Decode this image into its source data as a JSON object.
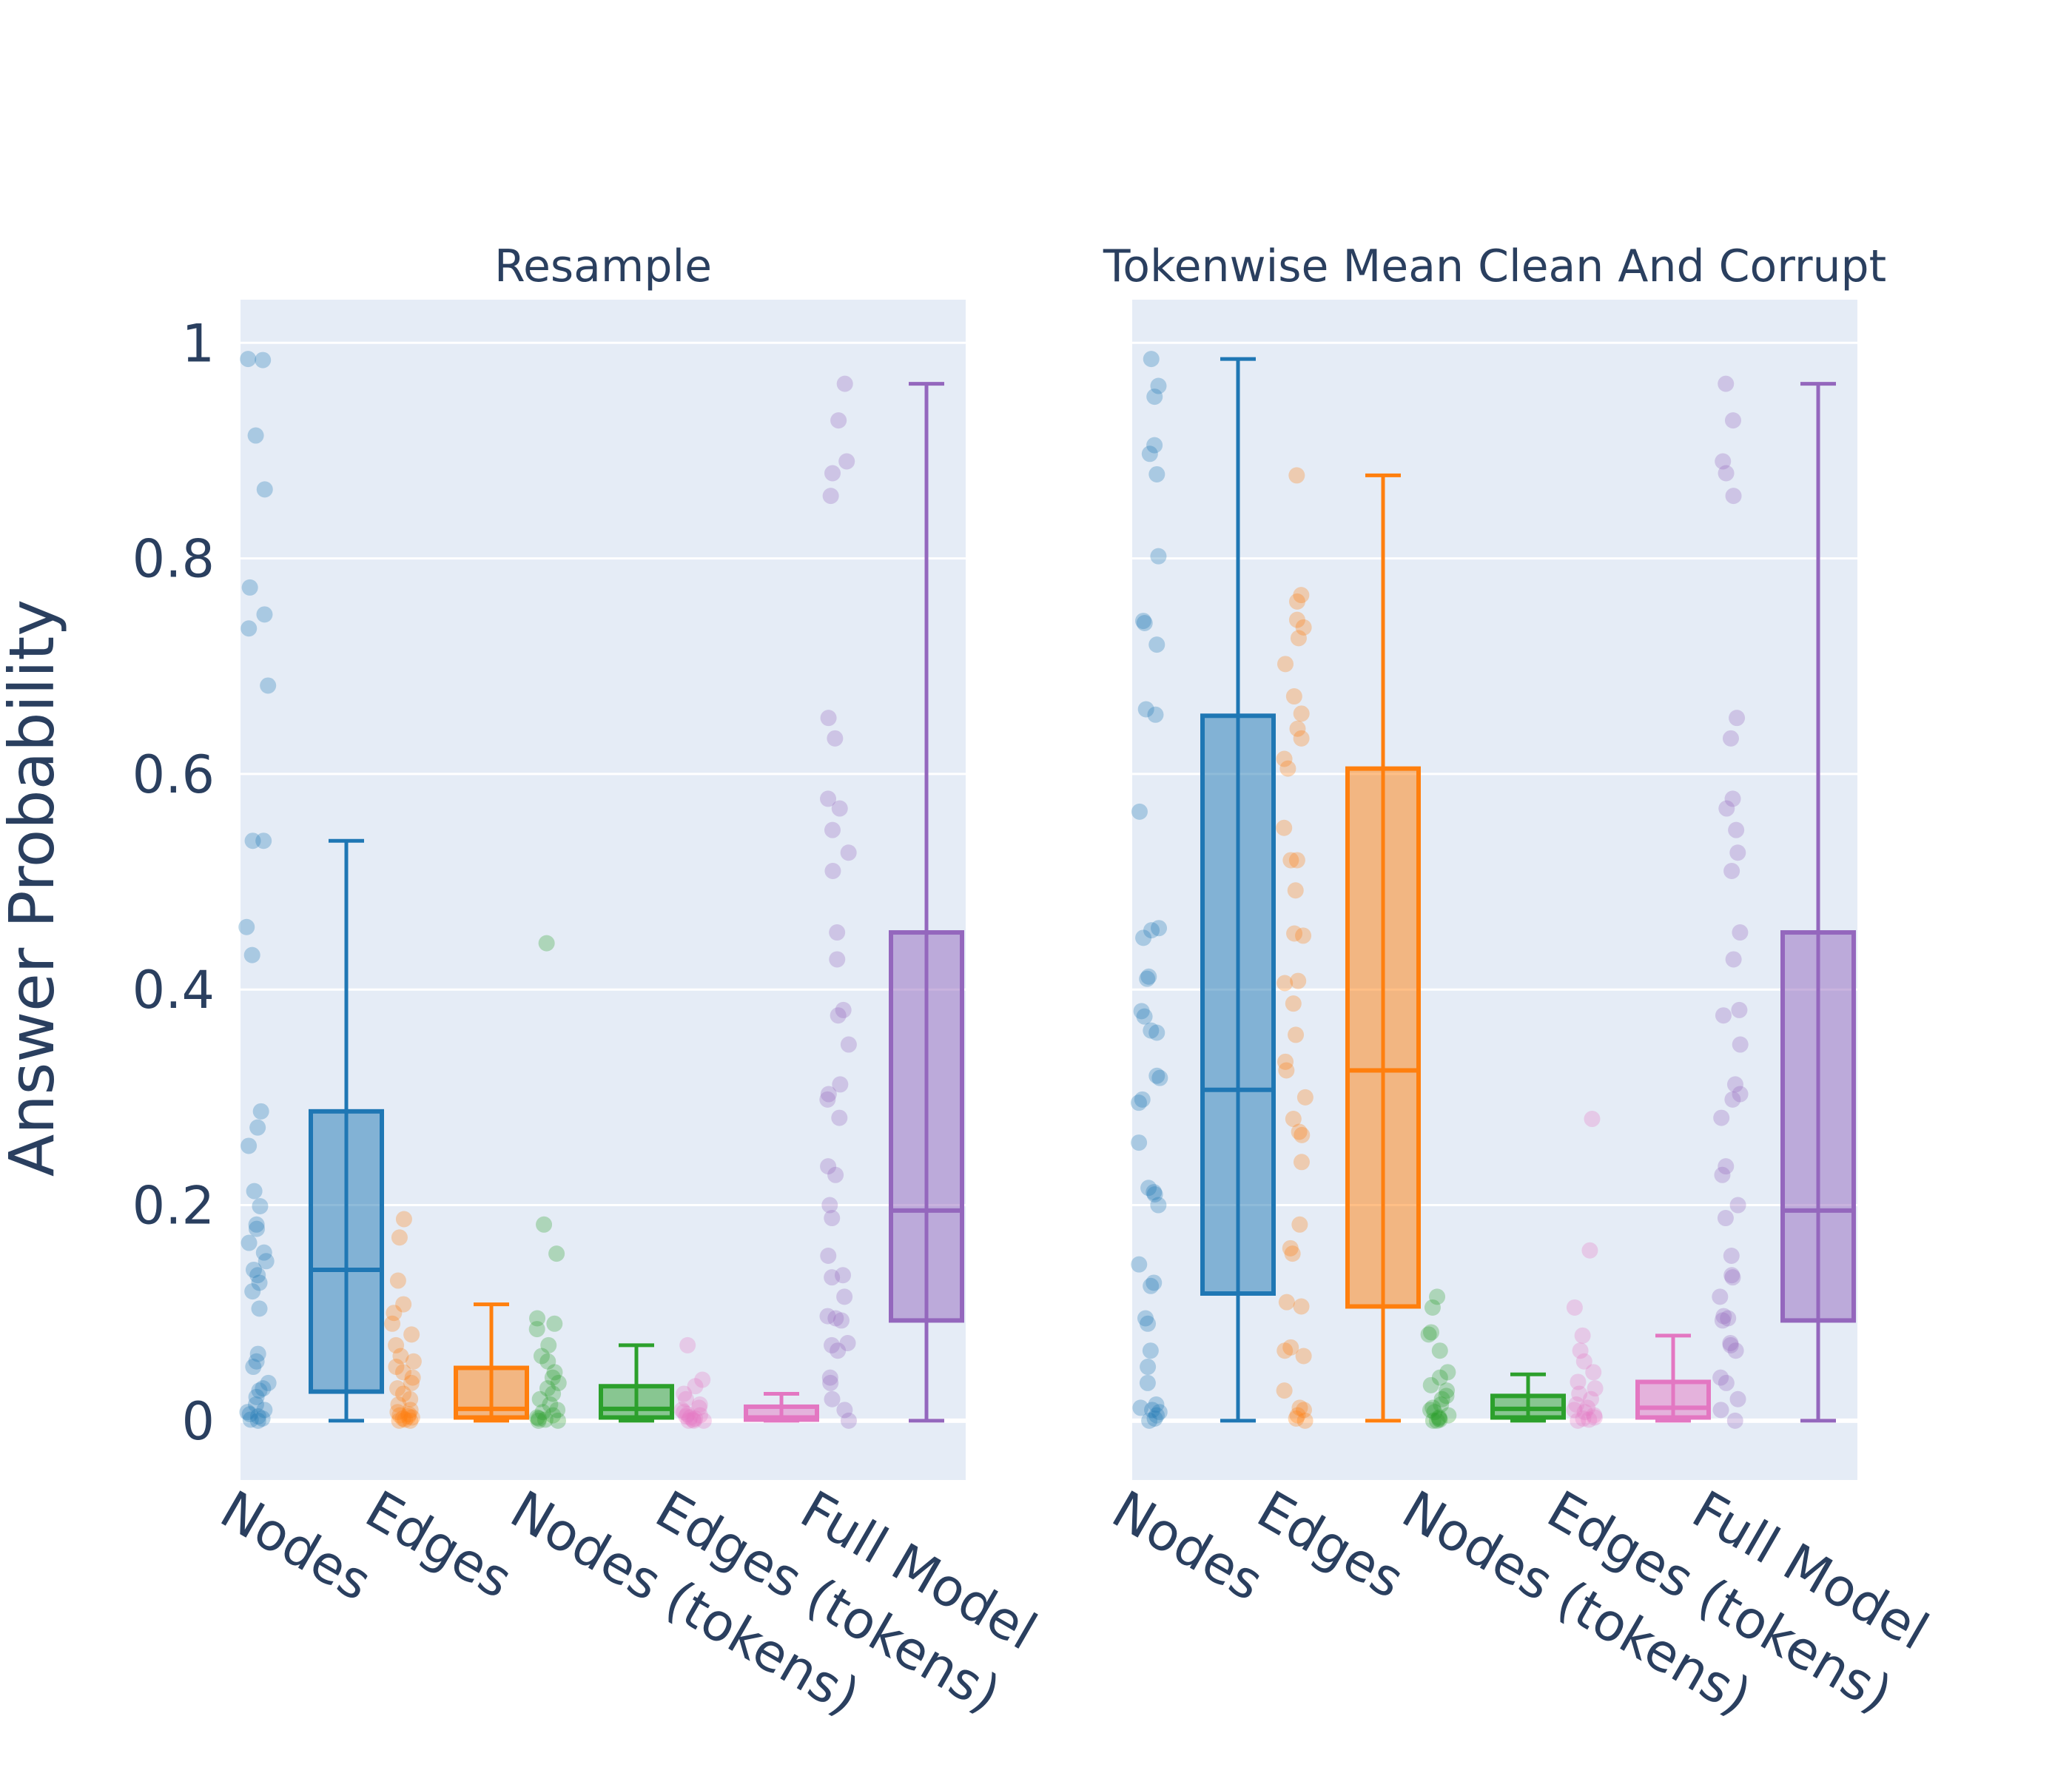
{
  "chart_data": {
    "type": "box",
    "ylabel": "Answer Probability",
    "yticks": [
      {
        "value": 0,
        "label": "0"
      },
      {
        "value": 0.2,
        "label": "0.2"
      },
      {
        "value": 0.4,
        "label": "0.4"
      },
      {
        "value": 0.6,
        "label": "0.6"
      },
      {
        "value": 0.8,
        "label": "0.8"
      },
      {
        "value": 1,
        "label": "1"
      }
    ],
    "ylim": [
      -0.055,
      1.04
    ],
    "categories": [
      "Nodes",
      "Edges",
      "Nodes (tokens)",
      "Edges (tokens)",
      "Full Model"
    ],
    "colors": [
      "#1f77b4",
      "#ff7f0e",
      "#2ca02c",
      "#e377c2",
      "#9467bd"
    ],
    "panels": [
      {
        "title": "Resample",
        "boxes": [
          {
            "category": "Nodes",
            "min": 0,
            "q1": 0.027,
            "median": 0.14,
            "q3": 0.287,
            "max": 0.538,
            "points": [
              0.984,
              0.985,
              0.914,
              0.864,
              0.773,
              0.748,
              0.735,
              0.682,
              0.538,
              0.538,
              0.458,
              0.432,
              0.287,
              0.272,
              0.255,
              0.213,
              0.199,
              0.182,
              0.178,
              0.165,
              0.156,
              0.148,
              0.14,
              0.135,
              0.128,
              0.12,
              0.104,
              0.062,
              0.055,
              0.05,
              0.035,
              0.03,
              0.028,
              0.022,
              0.015,
              0.01,
              0.008,
              0.006,
              0.004,
              0.002,
              0.001,
              0.0
            ]
          },
          {
            "category": "Edges",
            "min": 0,
            "q1": 0.003,
            "median": 0.011,
            "q3": 0.049,
            "max": 0.108,
            "points": [
              0.187,
              0.17,
              0.13,
              0.108,
              0.1,
              0.09,
              0.08,
              0.07,
              0.06,
              0.055,
              0.05,
              0.045,
              0.04,
              0.035,
              0.03,
              0.025,
              0.02,
              0.015,
              0.01,
              0.008,
              0.006,
              0.005,
              0.004,
              0.003,
              0.002,
              0.001,
              0.0,
              0.0
            ]
          },
          {
            "category": "Nodes (tokens)",
            "min": 0,
            "q1": 0.003,
            "median": 0.011,
            "q3": 0.032,
            "max": 0.07,
            "points": [
              0.443,
              0.182,
              0.155,
              0.095,
              0.09,
              0.085,
              0.07,
              0.06,
              0.055,
              0.045,
              0.04,
              0.035,
              0.03,
              0.025,
              0.02,
              0.015,
              0.01,
              0.008,
              0.005,
              0.003,
              0.002,
              0.001,
              0.0,
              0.0
            ]
          },
          {
            "category": "Edges (tokens)",
            "min": 0,
            "q1": 0.001,
            "median": 0.003,
            "q3": 0.013,
            "max": 0.025,
            "points": [
              0.07,
              0.038,
              0.032,
              0.025,
              0.02,
              0.015,
              0.012,
              0.01,
              0.008,
              0.006,
              0.005,
              0.004,
              0.003,
              0.002,
              0.001,
              0.0,
              0.0,
              0.0
            ]
          },
          {
            "category": "Full Model",
            "min": 0,
            "q1": 0.093,
            "median": 0.195,
            "q3": 0.453,
            "max": 0.962,
            "points": [
              0.962,
              0.928,
              0.89,
              0.879,
              0.858,
              0.652,
              0.633,
              0.577,
              0.568,
              0.548,
              0.527,
              0.51,
              0.453,
              0.428,
              0.381,
              0.376,
              0.349,
              0.312,
              0.303,
              0.298,
              0.281,
              0.236,
              0.228,
              0.2,
              0.188,
              0.153,
              0.135,
              0.133,
              0.115,
              0.097,
              0.095,
              0.093,
              0.072,
              0.07,
              0.065,
              0.04,
              0.035,
              0.02,
              0.01,
              0.0
            ]
          }
        ]
      },
      {
        "title": "Tokenwise Mean Clean And Corrupt",
        "boxes": [
          {
            "category": "Nodes",
            "min": 0,
            "q1": 0.118,
            "median": 0.307,
            "q3": 0.654,
            "max": 0.985,
            "points": [
              0.985,
              0.96,
              0.95,
              0.905,
              0.897,
              0.878,
              0.802,
              0.742,
              0.74,
              0.72,
              0.66,
              0.655,
              0.565,
              0.457,
              0.455,
              0.448,
              0.412,
              0.41,
              0.38,
              0.375,
              0.362,
              0.36,
              0.32,
              0.318,
              0.298,
              0.295,
              0.258,
              0.216,
              0.212,
              0.21,
              0.2,
              0.145,
              0.128,
              0.125,
              0.095,
              0.09,
              0.065,
              0.05,
              0.035,
              0.015,
              0.012,
              0.01,
              0.008,
              0.005,
              0.002,
              0.0
            ]
          },
          {
            "category": "Edges",
            "min": 0,
            "q1": 0.106,
            "median": 0.325,
            "q3": 0.605,
            "max": 0.877,
            "points": [
              0.877,
              0.766,
              0.76,
              0.743,
              0.736,
              0.726,
              0.702,
              0.672,
              0.656,
              0.642,
              0.633,
              0.614,
              0.605,
              0.55,
              0.52,
              0.52,
              0.492,
              0.452,
              0.45,
              0.408,
              0.406,
              0.387,
              0.358,
              0.333,
              0.325,
              0.3,
              0.28,
              0.268,
              0.265,
              0.24,
              0.182,
              0.16,
              0.155,
              0.11,
              0.106,
              0.068,
              0.065,
              0.06,
              0.028,
              0.012,
              0.01,
              0.005,
              0.002,
              0.0
            ]
          },
          {
            "category": "Nodes (tokens)",
            "min": 0,
            "q1": 0.003,
            "median": 0.011,
            "q3": 0.023,
            "max": 0.043,
            "points": [
              0.115,
              0.105,
              0.082,
              0.08,
              0.065,
              0.045,
              0.04,
              0.033,
              0.028,
              0.023,
              0.02,
              0.015,
              0.012,
              0.01,
              0.008,
              0.005,
              0.003,
              0.002,
              0.001,
              0.0,
              0.0
            ]
          },
          {
            "category": "Edges (tokens)",
            "min": 0,
            "q1": 0.003,
            "median": 0.012,
            "q3": 0.036,
            "max": 0.079,
            "points": [
              0.28,
              0.158,
              0.105,
              0.079,
              0.065,
              0.055,
              0.045,
              0.036,
              0.03,
              0.025,
              0.02,
              0.015,
              0.012,
              0.01,
              0.008,
              0.005,
              0.003,
              0.002,
              0.001,
              0.0
            ]
          },
          {
            "category": "Full Model",
            "min": 0,
            "q1": 0.093,
            "median": 0.195,
            "q3": 0.453,
            "max": 0.962,
            "points": [
              0.962,
              0.928,
              0.89,
              0.879,
              0.858,
              0.652,
              0.633,
              0.577,
              0.568,
              0.548,
              0.527,
              0.51,
              0.453,
              0.428,
              0.381,
              0.376,
              0.349,
              0.312,
              0.303,
              0.298,
              0.281,
              0.236,
              0.228,
              0.2,
              0.188,
              0.153,
              0.135,
              0.133,
              0.115,
              0.097,
              0.095,
              0.093,
              0.072,
              0.07,
              0.065,
              0.04,
              0.035,
              0.02,
              0.01,
              0.0
            ]
          }
        ]
      }
    ]
  }
}
